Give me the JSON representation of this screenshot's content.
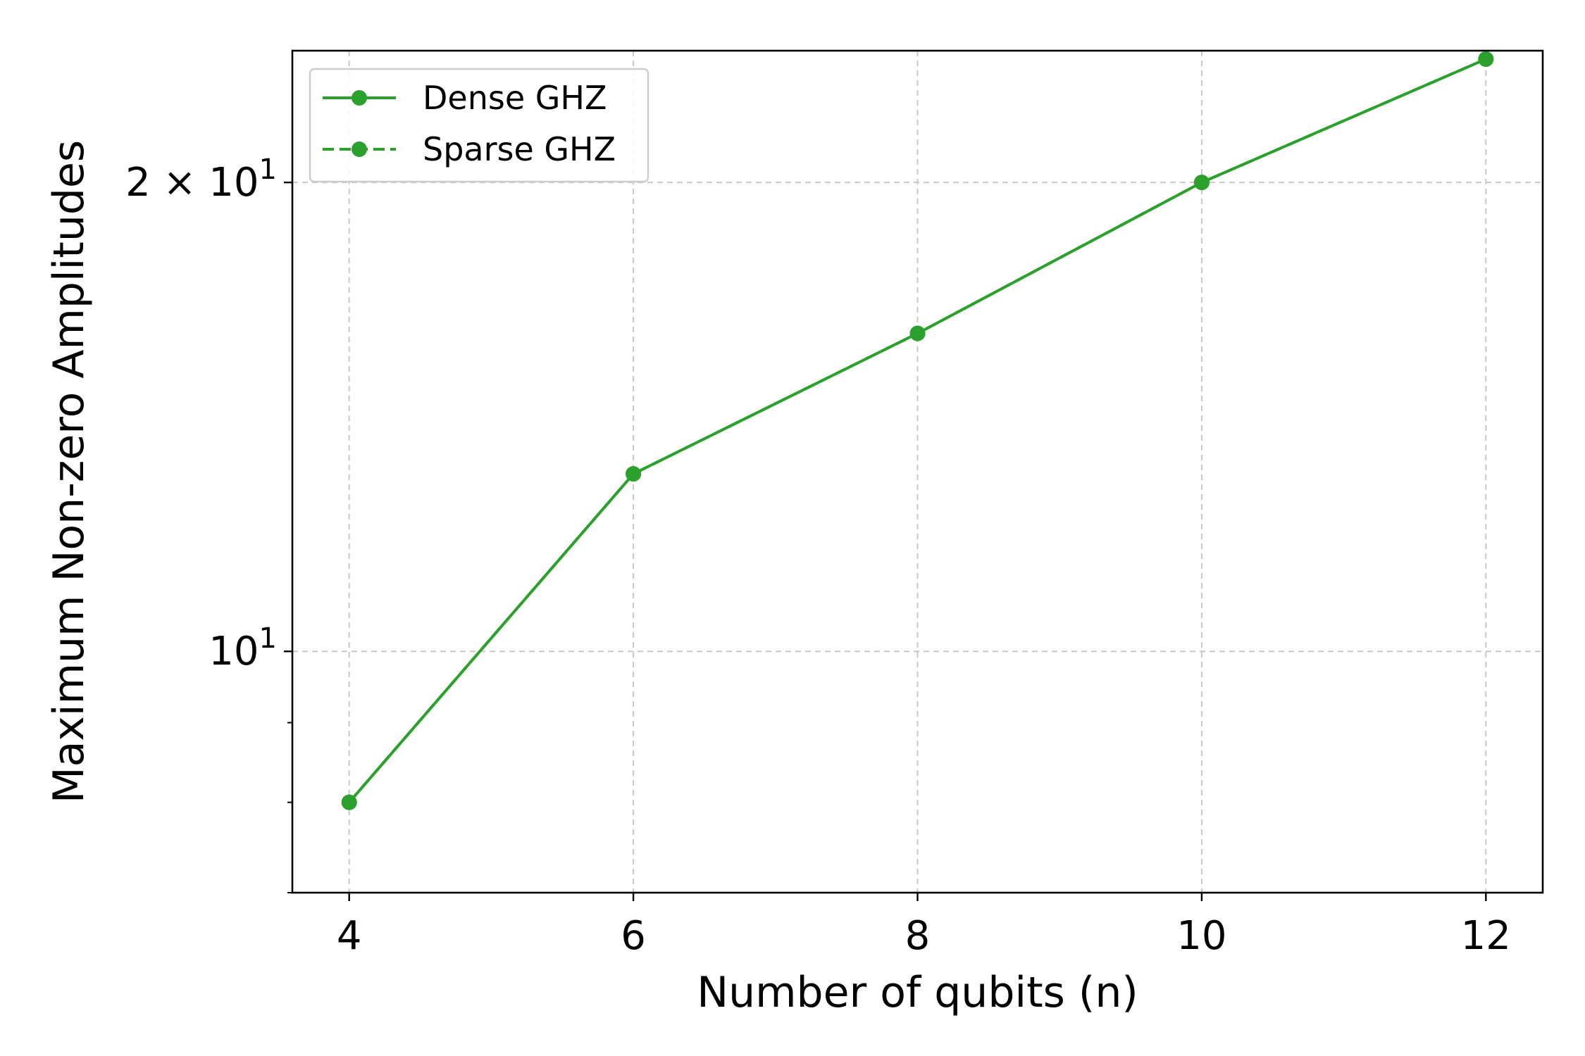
{
  "chart_data": {
    "type": "line",
    "title": "",
    "xlabel": "Number of qubits (n)",
    "ylabel": "Maximum Non-zero Amplitudes",
    "x": [
      4,
      6,
      8,
      10,
      12
    ],
    "xlim": [
      3.6,
      12.4
    ],
    "ylim": [
      7.0,
      24.3
    ],
    "yscale": "log",
    "x_ticks": [
      4,
      6,
      8,
      10,
      12
    ],
    "x_tick_labels": [
      "4",
      "6",
      "8",
      "10",
      "12"
    ],
    "y_ticks": [
      {
        "value": 10,
        "base": "10",
        "exp": "1"
      },
      {
        "value": 20,
        "base": "2 × 10",
        "exp": "1"
      }
    ],
    "y_minor_ticks": [
      7,
      8,
      9
    ],
    "grid": true,
    "legend_position": "upper-left",
    "series": [
      {
        "name": "Dense GHZ",
        "values": [
          8,
          13,
          16,
          20,
          24
        ],
        "color": "#2ca02c",
        "line_style": "solid",
        "marker": "circle"
      },
      {
        "name": "Sparse GHZ",
        "values": [
          8,
          13,
          16,
          20,
          24
        ],
        "color": "#2ca02c",
        "line_style": "dashed",
        "marker": "circle"
      }
    ]
  }
}
